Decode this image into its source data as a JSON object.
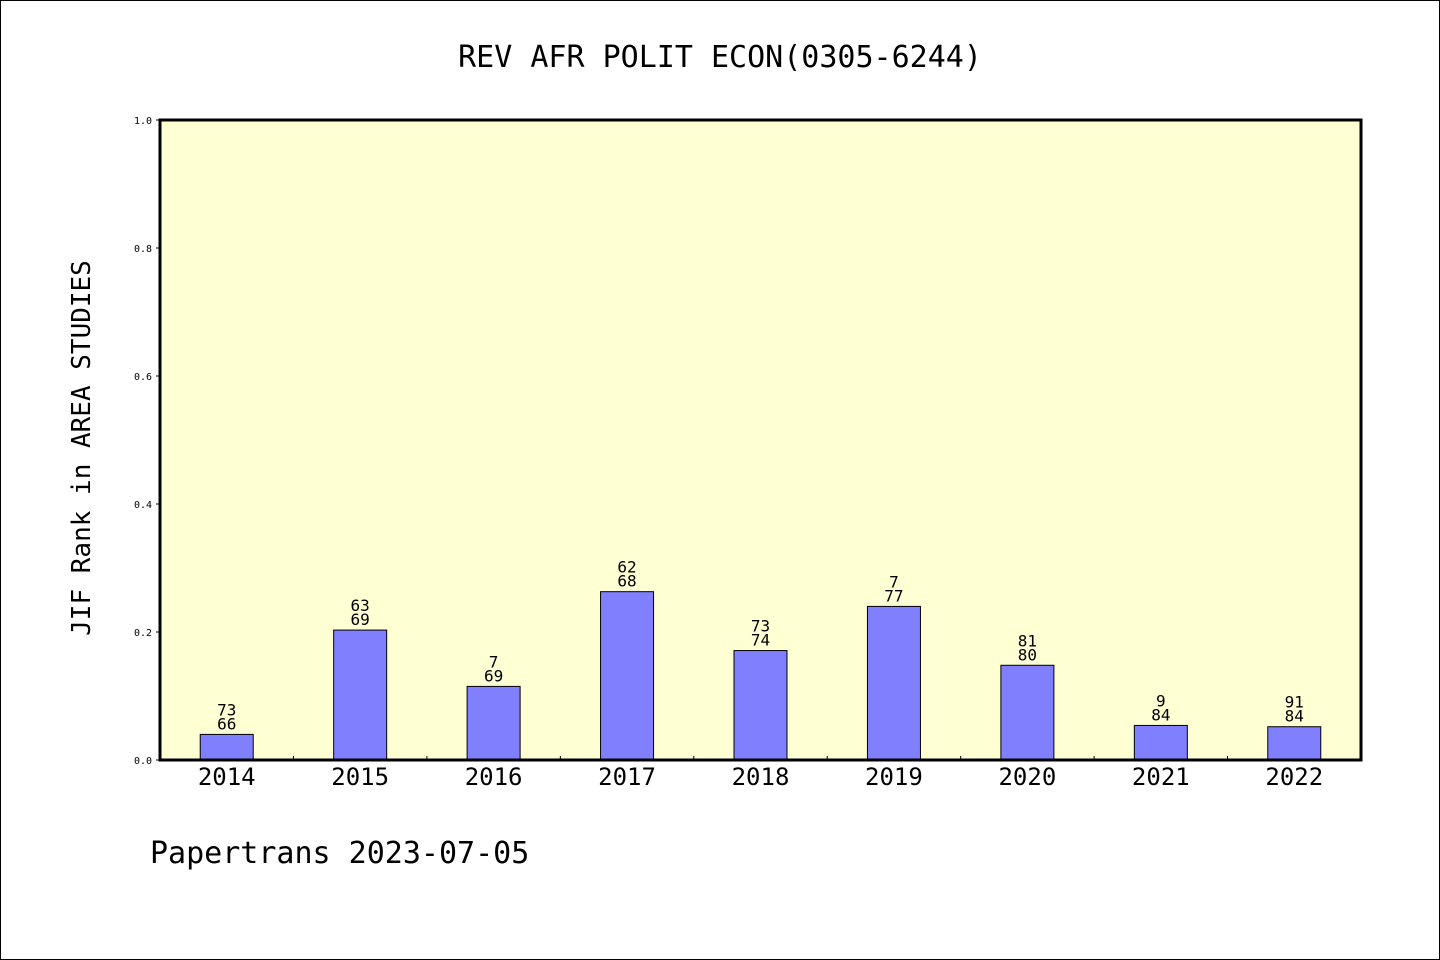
{
  "chart_data": {
    "type": "bar",
    "title": "REV AFR POLIT ECON(0305-6244)",
    "xlabel": "",
    "ylabel": "JIF Rank in AREA STUDIES",
    "ylim": [
      0.0,
      1.0
    ],
    "yticks": [
      "0.0",
      "0.2",
      "0.4",
      "0.6",
      "0.8",
      "1.0"
    ],
    "grid": false,
    "categories": [
      "2014",
      "2015",
      "2016",
      "2017",
      "2018",
      "2019",
      "2020",
      "2021",
      "2022"
    ],
    "values": [
      0.04,
      0.203,
      0.115,
      0.263,
      0.171,
      0.24,
      0.148,
      0.054,
      0.052
    ],
    "label_top": [
      "73",
      "63",
      "7",
      "62",
      "73",
      "7",
      "81",
      "9",
      "91"
    ],
    "label_bottom": [
      "66",
      "69",
      "69",
      "68",
      "74",
      "77",
      "80",
      "84",
      "84"
    ]
  },
  "colors": {
    "plot_background": "#ffffd4",
    "bar_fill": "#8080ff",
    "bar_stroke": "#000000",
    "axis": "#000000"
  },
  "footer": "Papertrans 2023-07-05"
}
